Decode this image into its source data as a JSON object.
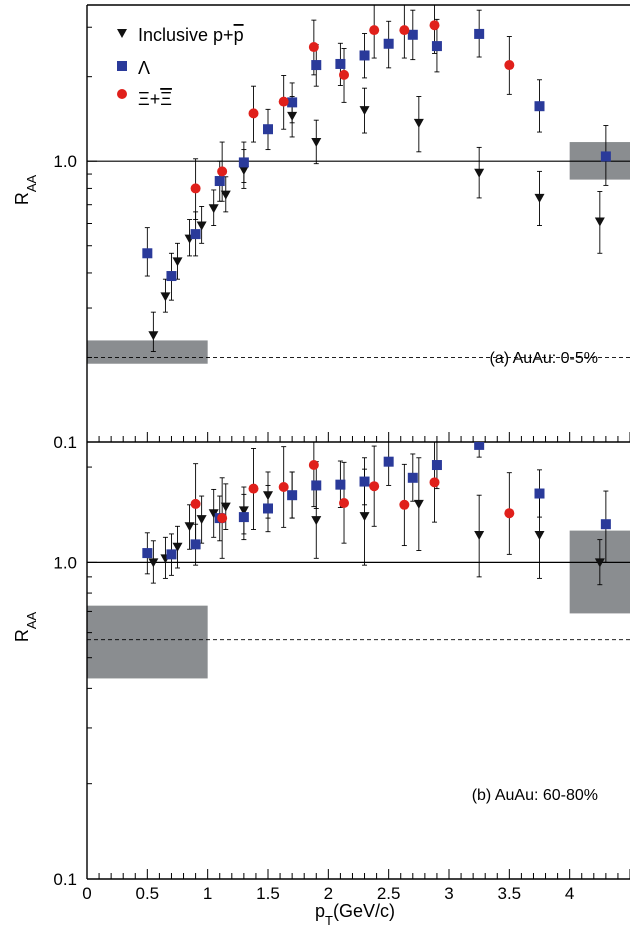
{
  "chart_data": [
    {
      "type": "scatter",
      "panel": "a",
      "annotation": "(a) AuAu: 0-5%",
      "ylabel_main": "R",
      "ylabel_sub": "AA",
      "xlim": [
        0,
        4.5
      ],
      "ylim": [
        0.1,
        3.6
      ],
      "yscale": "log",
      "ytick_labels": [
        "0.1",
        "1.0"
      ],
      "ytick_values": [
        0.1,
        1.0
      ],
      "reference_line": 1.0,
      "dashed_line": 0.2,
      "systematic_boxes": [
        {
          "x0": 0.0,
          "x1": 1.0,
          "y0": 0.19,
          "y1": 0.23
        },
        {
          "x0": 4.0,
          "x1": 4.5,
          "y0": 0.86,
          "y1": 1.17
        }
      ],
      "legend": [
        {
          "label_main": "Inclusive p+",
          "label_bar": "p",
          "marker": "triangle-down",
          "color": "#111111"
        },
        {
          "label_main": "Λ",
          "marker": "square",
          "color": "#2a3a9a"
        },
        {
          "label_main": "Ξ+",
          "label_bar": "Ξ",
          "marker": "circle",
          "color": "#e0201b"
        }
      ],
      "series": [
        {
          "marker": "triangle-down",
          "color": "#111111",
          "points": [
            {
              "x": 0.55,
              "y": 0.24,
              "lo": 0.21,
              "hi": 0.29
            },
            {
              "x": 0.65,
              "y": 0.33,
              "lo": 0.29,
              "hi": 0.38
            },
            {
              "x": 0.75,
              "y": 0.44,
              "lo": 0.38,
              "hi": 0.51
            },
            {
              "x": 0.85,
              "y": 0.53,
              "lo": 0.46,
              "hi": 0.62
            },
            {
              "x": 0.95,
              "y": 0.59,
              "lo": 0.51,
              "hi": 0.69
            },
            {
              "x": 1.05,
              "y": 0.68,
              "lo": 0.59,
              "hi": 0.79
            },
            {
              "x": 1.15,
              "y": 0.76,
              "lo": 0.66,
              "hi": 0.88
            },
            {
              "x": 1.3,
              "y": 0.93,
              "lo": 0.8,
              "hi": 1.1
            },
            {
              "x": 1.7,
              "y": 1.45,
              "lo": 1.22,
              "hi": 1.7
            },
            {
              "x": 1.9,
              "y": 1.17,
              "lo": 0.98,
              "hi": 1.4
            },
            {
              "x": 2.3,
              "y": 1.52,
              "lo": 1.26,
              "hi": 1.82
            },
            {
              "x": 2.75,
              "y": 1.37,
              "lo": 1.08,
              "hi": 1.7
            },
            {
              "x": 3.25,
              "y": 0.91,
              "lo": 0.74,
              "hi": 1.12
            },
            {
              "x": 3.75,
              "y": 0.74,
              "lo": 0.59,
              "hi": 0.92
            },
            {
              "x": 4.25,
              "y": 0.61,
              "lo": 0.47,
              "hi": 0.78
            }
          ]
        },
        {
          "marker": "square",
          "color": "#2a3a9a",
          "points": [
            {
              "x": 0.5,
              "y": 0.47,
              "lo": 0.39,
              "hi": 0.58
            },
            {
              "x": 0.7,
              "y": 0.39,
              "lo": 0.32,
              "hi": 0.47
            },
            {
              "x": 0.9,
              "y": 0.55,
              "lo": 0.46,
              "hi": 0.66
            },
            {
              "x": 1.1,
              "y": 0.85,
              "lo": 0.72,
              "hi": 1.0
            },
            {
              "x": 1.3,
              "y": 0.99,
              "lo": 0.84,
              "hi": 1.17
            },
            {
              "x": 1.5,
              "y": 1.3,
              "lo": 1.1,
              "hi": 1.53
            },
            {
              "x": 1.7,
              "y": 1.62,
              "lo": 1.37,
              "hi": 1.9
            },
            {
              "x": 1.9,
              "y": 2.2,
              "lo": 1.85,
              "hi": 2.6
            },
            {
              "x": 2.1,
              "y": 2.22,
              "lo": 1.86,
              "hi": 2.63
            },
            {
              "x": 2.3,
              "y": 2.38,
              "lo": 1.98,
              "hi": 2.85
            },
            {
              "x": 2.5,
              "y": 2.62,
              "lo": 2.15,
              "hi": 3.15
            },
            {
              "x": 2.7,
              "y": 2.82,
              "lo": 2.3,
              "hi": 3.45
            },
            {
              "x": 2.9,
              "y": 2.57,
              "lo": 2.08,
              "hi": 3.2
            },
            {
              "x": 3.25,
              "y": 2.84,
              "lo": 2.35,
              "hi": 3.45
            },
            {
              "x": 3.75,
              "y": 1.57,
              "lo": 1.27,
              "hi": 1.95
            },
            {
              "x": 4.3,
              "y": 1.04,
              "lo": 0.82,
              "hi": 1.34
            }
          ]
        },
        {
          "marker": "circle",
          "color": "#e0201b",
          "points": [
            {
              "x": 0.9,
              "y": 0.8,
              "lo": 0.62,
              "hi": 1.02
            },
            {
              "x": 1.12,
              "y": 0.92,
              "lo": 0.72,
              "hi": 1.17
            },
            {
              "x": 1.38,
              "y": 1.48,
              "lo": 1.17,
              "hi": 1.85
            },
            {
              "x": 1.63,
              "y": 1.63,
              "lo": 1.3,
              "hi": 2.02
            },
            {
              "x": 1.88,
              "y": 2.55,
              "lo": 2.03,
              "hi": 3.18
            },
            {
              "x": 2.13,
              "y": 2.03,
              "lo": 1.62,
              "hi": 2.52
            },
            {
              "x": 2.38,
              "y": 2.93,
              "lo": 2.33,
              "hi": 3.62
            },
            {
              "x": 2.63,
              "y": 2.93,
              "lo": 2.33,
              "hi": 3.62
            },
            {
              "x": 2.88,
              "y": 3.05,
              "lo": 2.42,
              "hi": 3.8
            },
            {
              "x": 3.5,
              "y": 2.2,
              "lo": 1.73,
              "hi": 2.78
            }
          ]
        }
      ]
    },
    {
      "type": "scatter",
      "panel": "b",
      "annotation": "(b) AuAu: 60-80%",
      "ylabel_main": "R",
      "ylabel_sub": "AA",
      "xlim": [
        0,
        4.5
      ],
      "ylim": [
        0.1,
        2.4
      ],
      "yscale": "log",
      "ytick_labels": [
        "0.1",
        "1.0"
      ],
      "ytick_values": [
        0.1,
        1.0
      ],
      "xtick_labels": [
        "0",
        "0.5",
        "1",
        "1.5",
        "2",
        "2.5",
        "3",
        "3.5",
        "4"
      ],
      "xtick_values": [
        0,
        0.5,
        1,
        1.5,
        2,
        2.5,
        3,
        3.5,
        4
      ],
      "xlabel_main": "p",
      "xlabel_sub": "T",
      "xlabel_rest": "(GeV/c)",
      "reference_line": 1.0,
      "dashed_line": 0.57,
      "systematic_boxes": [
        {
          "x0": 0.0,
          "x1": 1.0,
          "y0": 0.43,
          "y1": 0.73
        },
        {
          "x0": 4.0,
          "x1": 4.5,
          "y0": 0.69,
          "y1": 1.26
        }
      ],
      "series": [
        {
          "marker": "triangle-down",
          "color": "#111111",
          "points": [
            {
              "x": 0.55,
              "y": 1.0,
              "lo": 0.86,
              "hi": 1.17
            },
            {
              "x": 0.65,
              "y": 1.03,
              "lo": 0.89,
              "hi": 1.2
            },
            {
              "x": 0.75,
              "y": 1.12,
              "lo": 0.96,
              "hi": 1.3
            },
            {
              "x": 0.85,
              "y": 1.3,
              "lo": 1.1,
              "hi": 1.52
            },
            {
              "x": 0.95,
              "y": 1.37,
              "lo": 1.15,
              "hi": 1.62
            },
            {
              "x": 1.05,
              "y": 1.43,
              "lo": 1.2,
              "hi": 1.7
            },
            {
              "x": 1.15,
              "y": 1.5,
              "lo": 1.27,
              "hi": 1.77
            },
            {
              "x": 1.3,
              "y": 1.46,
              "lo": 1.23,
              "hi": 1.73
            },
            {
              "x": 1.5,
              "y": 1.63,
              "lo": 1.38,
              "hi": 1.93
            },
            {
              "x": 1.7,
              "y": 1.63,
              "lo": 1.38,
              "hi": 1.93
            },
            {
              "x": 1.9,
              "y": 1.36,
              "lo": 1.03,
              "hi": 1.77
            },
            {
              "x": 2.3,
              "y": 1.4,
              "lo": 0.98,
              "hi": 1.97
            },
            {
              "x": 2.75,
              "y": 1.53,
              "lo": 1.09,
              "hi": 2.14
            },
            {
              "x": 3.25,
              "y": 1.22,
              "lo": 0.9,
              "hi": 1.63
            },
            {
              "x": 3.75,
              "y": 1.22,
              "lo": 0.89,
              "hi": 1.65
            },
            {
              "x": 4.25,
              "y": 1.0,
              "lo": 0.85,
              "hi": 1.18
            }
          ]
        },
        {
          "marker": "square",
          "color": "#2a3a9a",
          "points": [
            {
              "x": 0.5,
              "y": 1.07,
              "lo": 0.92,
              "hi": 1.24
            },
            {
              "x": 0.7,
              "y": 1.06,
              "lo": 0.91,
              "hi": 1.23
            },
            {
              "x": 0.9,
              "y": 1.14,
              "lo": 0.98,
              "hi": 1.32
            },
            {
              "x": 1.1,
              "y": 1.38,
              "lo": 1.17,
              "hi": 1.62
            },
            {
              "x": 1.3,
              "y": 1.39,
              "lo": 1.18,
              "hi": 1.64
            },
            {
              "x": 1.5,
              "y": 1.48,
              "lo": 1.25,
              "hi": 1.75
            },
            {
              "x": 1.7,
              "y": 1.63,
              "lo": 1.38,
              "hi": 1.93
            },
            {
              "x": 1.9,
              "y": 1.75,
              "lo": 1.48,
              "hi": 2.08
            },
            {
              "x": 2.1,
              "y": 1.76,
              "lo": 1.49,
              "hi": 2.09
            },
            {
              "x": 2.3,
              "y": 1.8,
              "lo": 1.52,
              "hi": 2.14
            },
            {
              "x": 2.5,
              "y": 2.08,
              "lo": 1.75,
              "hi": 2.48
            },
            {
              "x": 2.7,
              "y": 1.85,
              "lo": 1.56,
              "hi": 2.2
            },
            {
              "x": 2.9,
              "y": 2.03,
              "lo": 1.71,
              "hi": 2.42
            },
            {
              "x": 3.25,
              "y": 2.35,
              "lo": 2.15,
              "hi": 2.55
            },
            {
              "x": 3.75,
              "y": 1.65,
              "lo": 1.39,
              "hi": 1.96
            },
            {
              "x": 4.3,
              "y": 1.32,
              "lo": 1.0,
              "hi": 1.68
            }
          ]
        },
        {
          "marker": "circle",
          "color": "#e0201b",
          "points": [
            {
              "x": 0.9,
              "y": 1.53,
              "lo": 1.14,
              "hi": 2.05
            },
            {
              "x": 1.12,
              "y": 1.38,
              "lo": 1.03,
              "hi": 1.85
            },
            {
              "x": 1.38,
              "y": 1.71,
              "lo": 1.27,
              "hi": 2.29
            },
            {
              "x": 1.63,
              "y": 1.73,
              "lo": 1.29,
              "hi": 2.32
            },
            {
              "x": 1.88,
              "y": 2.03,
              "lo": 1.5,
              "hi": 2.72
            },
            {
              "x": 2.13,
              "y": 1.54,
              "lo": 1.15,
              "hi": 2.07
            },
            {
              "x": 2.38,
              "y": 1.74,
              "lo": 1.3,
              "hi": 2.33
            },
            {
              "x": 2.63,
              "y": 1.52,
              "lo": 1.13,
              "hi": 2.04
            },
            {
              "x": 2.88,
              "y": 1.79,
              "lo": 1.34,
              "hi": 2.4
            },
            {
              "x": 3.5,
              "y": 1.43,
              "lo": 1.06,
              "hi": 1.92
            }
          ]
        }
      ]
    }
  ]
}
